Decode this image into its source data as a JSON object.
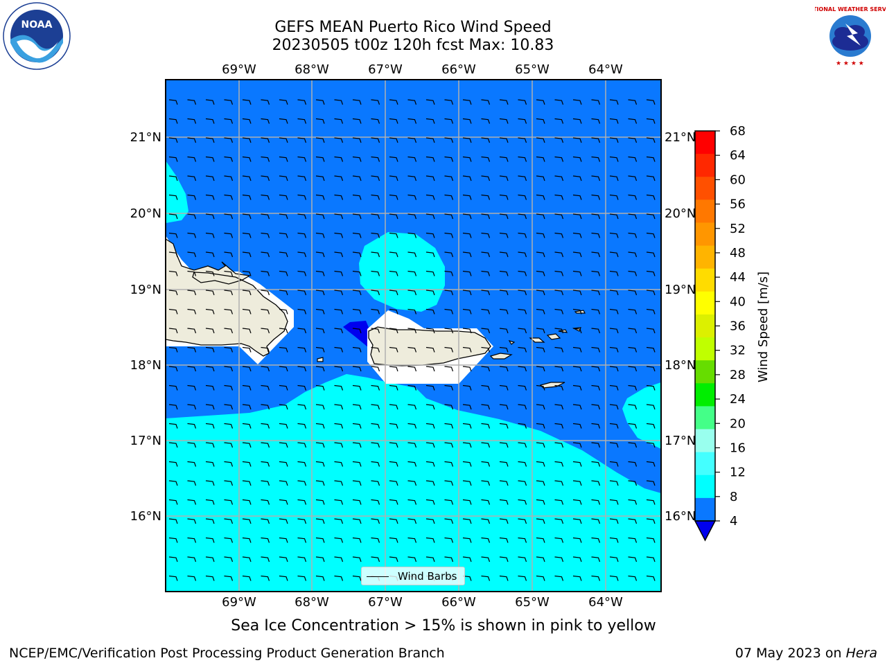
{
  "title": {
    "line1": "GEFS MEAN Puerto Rico Wind Speed",
    "line2": "20230505 t00z 120h fcst   Max: 10.83"
  },
  "map": {
    "lon_labels": [
      "69°W",
      "68°W",
      "67°W",
      "66°W",
      "65°W",
      "64°W"
    ],
    "lat_labels": [
      "21°N",
      "20°N",
      "19°N",
      "18°N",
      "17°N",
      "16°N"
    ],
    "legend_label": "Wind Barbs",
    "ocean_color": "#0a78ff",
    "light_color": "#00ffff",
    "land_color": "#eeecdc",
    "gridline_color": "#b0b0b0"
  },
  "colorbar": {
    "label": "Wind Speed [m/s]",
    "ticks": [
      "68",
      "64",
      "60",
      "56",
      "52",
      "48",
      "44",
      "40",
      "36",
      "32",
      "28",
      "24",
      "20",
      "16",
      "12",
      "8",
      "4"
    ],
    "colors": [
      "#ff0000",
      "#ff2800",
      "#ff5000",
      "#ff7800",
      "#ff9600",
      "#ffb400",
      "#ffdc00",
      "#ffff00",
      "#dcf000",
      "#c0ff00",
      "#66dd00",
      "#00ee00",
      "#44ff88",
      "#99ffee",
      "#44ffff",
      "#00ffff",
      "#0a78ff"
    ],
    "underflow_color": "#0000ee"
  },
  "note": "Sea Ice Concentration > 15% is shown in pink to yellow",
  "footer": {
    "left": "NCEP/EMC/Verification Post Processing Product Generation Branch",
    "date": "07 May 2023 on ",
    "machine": "Hera"
  },
  "logos": {
    "noaa_text": "NOAA",
    "nws_text": "NATIONAL WEATHER SERVICE"
  }
}
